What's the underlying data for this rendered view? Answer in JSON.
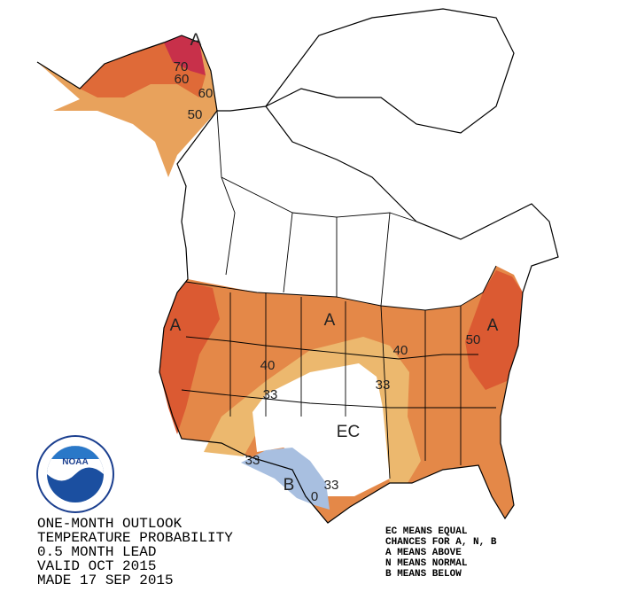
{
  "map": {
    "title_lines": [
      "ONE-MONTH OUTLOOK",
      "TEMPERATURE PROBABILITY",
      "0.5 MONTH LEAD",
      "VALID OCT 2015",
      "MADE 17 SEP 2015"
    ],
    "legend_lines": [
      "EC MEANS EQUAL",
      "CHANCES FOR A, N, B",
      "A MEANS ABOVE",
      "N MEANS NORMAL",
      "B MEANS BELOW"
    ],
    "logo": {
      "name": "NOAA"
    },
    "labels": [
      "A",
      "70",
      "60",
      "60",
      "50",
      "A",
      "A",
      "A",
      "40",
      "40",
      "50",
      "33",
      "33",
      "EC",
      "33",
      "B",
      "33",
      "0"
    ]
  }
}
